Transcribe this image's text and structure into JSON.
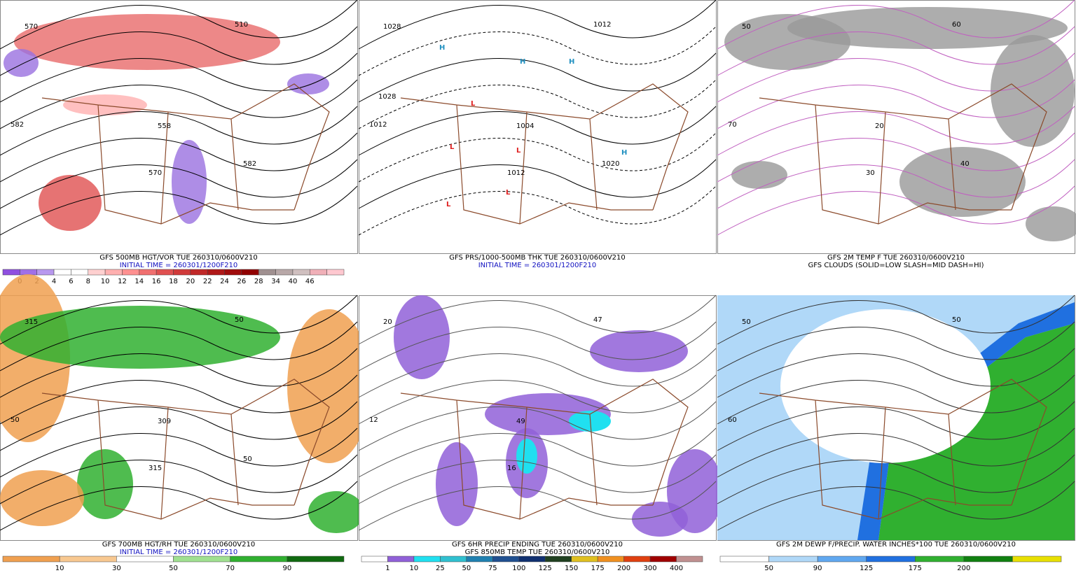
{
  "panels": [
    {
      "captions": [
        "GFS 500MB HGT/VOR TUE 260310/0600V210",
        "INITIAL TIME = 260301/1200F210"
      ],
      "legend": {
        "colors": [
          "#8f4fe0",
          "#a070e8",
          "#b898ee",
          "#ffffff",
          "#ffffff",
          "#ffd0d0",
          "#ffb0b0",
          "#ff9090",
          "#f07070",
          "#e05050",
          "#d03a3a",
          "#c02828",
          "#b01818",
          "#a00c0c",
          "#900000",
          "#a09090",
          "#b8a8a8",
          "#d0c0c0",
          "#f0b0b8",
          "#ffc8d0"
        ],
        "labels": [
          0,
          2,
          4,
          6,
          8,
          10,
          12,
          14,
          16,
          18,
          20,
          22,
          24,
          26,
          28,
          34,
          40,
          46
        ]
      },
      "map_labels": [
        "570",
        "510",
        "582",
        "558",
        "570",
        "582"
      ]
    },
    {
      "captions": [
        "GFS PRS/1000-500MB THK TUE 260310/0600V210",
        "INITIAL TIME = 260301/1200F210"
      ],
      "legend": null,
      "map_labels": [
        "1028",
        "1012",
        "1012",
        "1004",
        "1012",
        "1020",
        "1028",
        "L",
        "L",
        "L",
        "L",
        "L",
        "H",
        "H",
        "H",
        "H"
      ]
    },
    {
      "captions": [
        "GFS 2M TEMP F TUE 260310/0600V210",
        "GFS CLOUDS (SOLID=LOW SLASH=MID DASH=HI)"
      ],
      "legend": null,
      "map_labels": [
        "50",
        "60",
        "70",
        "20",
        "30",
        "40"
      ]
    },
    {
      "captions": [
        "GFS 700MB HGT/RH TUE 260310/0600V210",
        "INITIAL TIME = 260301/1200F210"
      ],
      "legend": {
        "colors": [
          "#f0a050",
          "#f8c890",
          "#ffffff",
          "#a0e090",
          "#30b030",
          "#106a10"
        ],
        "labels": [
          10,
          30,
          50,
          70,
          90
        ]
      },
      "map_labels": [
        "315",
        "50",
        "50",
        "309",
        "315",
        "50"
      ]
    },
    {
      "captions": [
        "GFS 6HR PRECIP ENDING TUE 260310/0600V210",
        "GFS 850MB TEMP TUE 260310/0600V210"
      ],
      "legend": {
        "colors": [
          "#ffffff",
          "#9060d8",
          "#20e0f0",
          "#30c0d0",
          "#2080b0",
          "#205090",
          "#103070",
          "#204020",
          "#e0c020",
          "#f09020",
          "#e04010",
          "#a00000",
          "#c09090"
        ],
        "labels": [
          1,
          10,
          25,
          50,
          75,
          100,
          125,
          150,
          175,
          200,
          300,
          400
        ]
      },
      "map_labels": [
        "20",
        "47",
        "12",
        "49",
        "16"
      ]
    },
    {
      "captions": [
        "GFS 2M DEWP F/PRECIP. WATER INCHES*100 TUE 260310/0600V210"
      ],
      "legend": {
        "colors": [
          "#ffffff",
          "#b0d8f8",
          "#60a8f0",
          "#2070e0",
          "#30b030",
          "#108010",
          "#e8e000"
        ],
        "labels": [
          50,
          90,
          125,
          175,
          200
        ]
      },
      "map_labels": [
        "50",
        "50",
        "60"
      ]
    }
  ]
}
